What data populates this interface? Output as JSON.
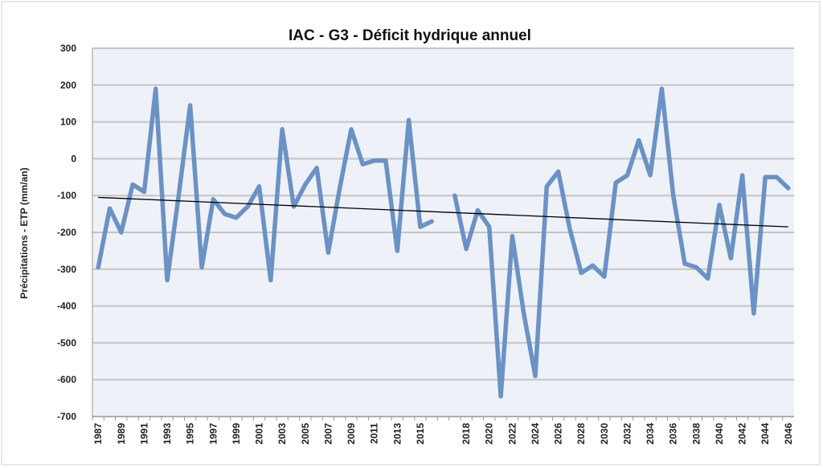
{
  "chart_data": {
    "type": "line",
    "title": "IAC - G3 - Déficit hydrique annuel",
    "xlabel": "",
    "ylabel": "Précipitations - ETP (mm/an)",
    "ylim": [
      -700,
      300
    ],
    "yticks": [
      300,
      200,
      100,
      0,
      -100,
      -200,
      -300,
      -400,
      -500,
      -600,
      -700
    ],
    "grid": true,
    "legend": "none",
    "categories": [
      "1987",
      "1988",
      "1989",
      "1990",
      "1991",
      "1992",
      "1993",
      "1994",
      "1995",
      "1996",
      "1997",
      "1998",
      "1999",
      "2000",
      "2001",
      "2002",
      "2003",
      "2004",
      "2005",
      "2006",
      "2007",
      "2008",
      "2009",
      "2010",
      "2011",
      "2012",
      "2013",
      "2014",
      "2015",
      "2016",
      "",
      "2017",
      "2018",
      "2019",
      "2020",
      "2021",
      "2022",
      "2023",
      "2024",
      "2025",
      "2026",
      "2027",
      "2028",
      "2029",
      "2030",
      "2031",
      "2032",
      "2033",
      "2034",
      "2035",
      "2036",
      "2037",
      "2038",
      "2039",
      "2040",
      "2041",
      "2042",
      "2043",
      "2044",
      "2045",
      "2046"
    ],
    "xtick_labels_shown": [
      "1987",
      "1989",
      "1991",
      "1993",
      "1995",
      "1997",
      "1999",
      "2001",
      "2003",
      "2005",
      "2007",
      "2009",
      "2011",
      "2013",
      "2015",
      "2018",
      "2020",
      "2022",
      "2024",
      "2026",
      "2028",
      "2030",
      "2032",
      "2034",
      "2036",
      "2038",
      "2040",
      "2042",
      "2044",
      "2046"
    ],
    "series": [
      {
        "name": "Précipitations - ETP",
        "color": "#6b92c4",
        "values": [
          -295,
          -135,
          -200,
          -70,
          -90,
          190,
          -330,
          -100,
          145,
          -295,
          -110,
          -150,
          -160,
          -130,
          -75,
          -330,
          80,
          -130,
          -70,
          -25,
          -255,
          -80,
          80,
          -15,
          -5,
          -5,
          -250,
          105,
          -185,
          -170,
          null,
          -100,
          -245,
          -140,
          -185,
          -645,
          -210,
          -420,
          -590,
          -75,
          -35,
          -190,
          -310,
          -290,
          -320,
          -65,
          -45,
          50,
          -45,
          190,
          -100,
          -285,
          -295,
          -325,
          -125,
          -270,
          -45,
          -420,
          -50,
          -50,
          -80
        ]
      },
      {
        "name": "Tendance linéaire",
        "color": "#000000",
        "type": "trendline",
        "values_start_end": [
          -105,
          -185
        ]
      }
    ],
    "colors": {
      "plot_bg": "#eef1f7",
      "grid": "#c4c4c4"
    }
  }
}
